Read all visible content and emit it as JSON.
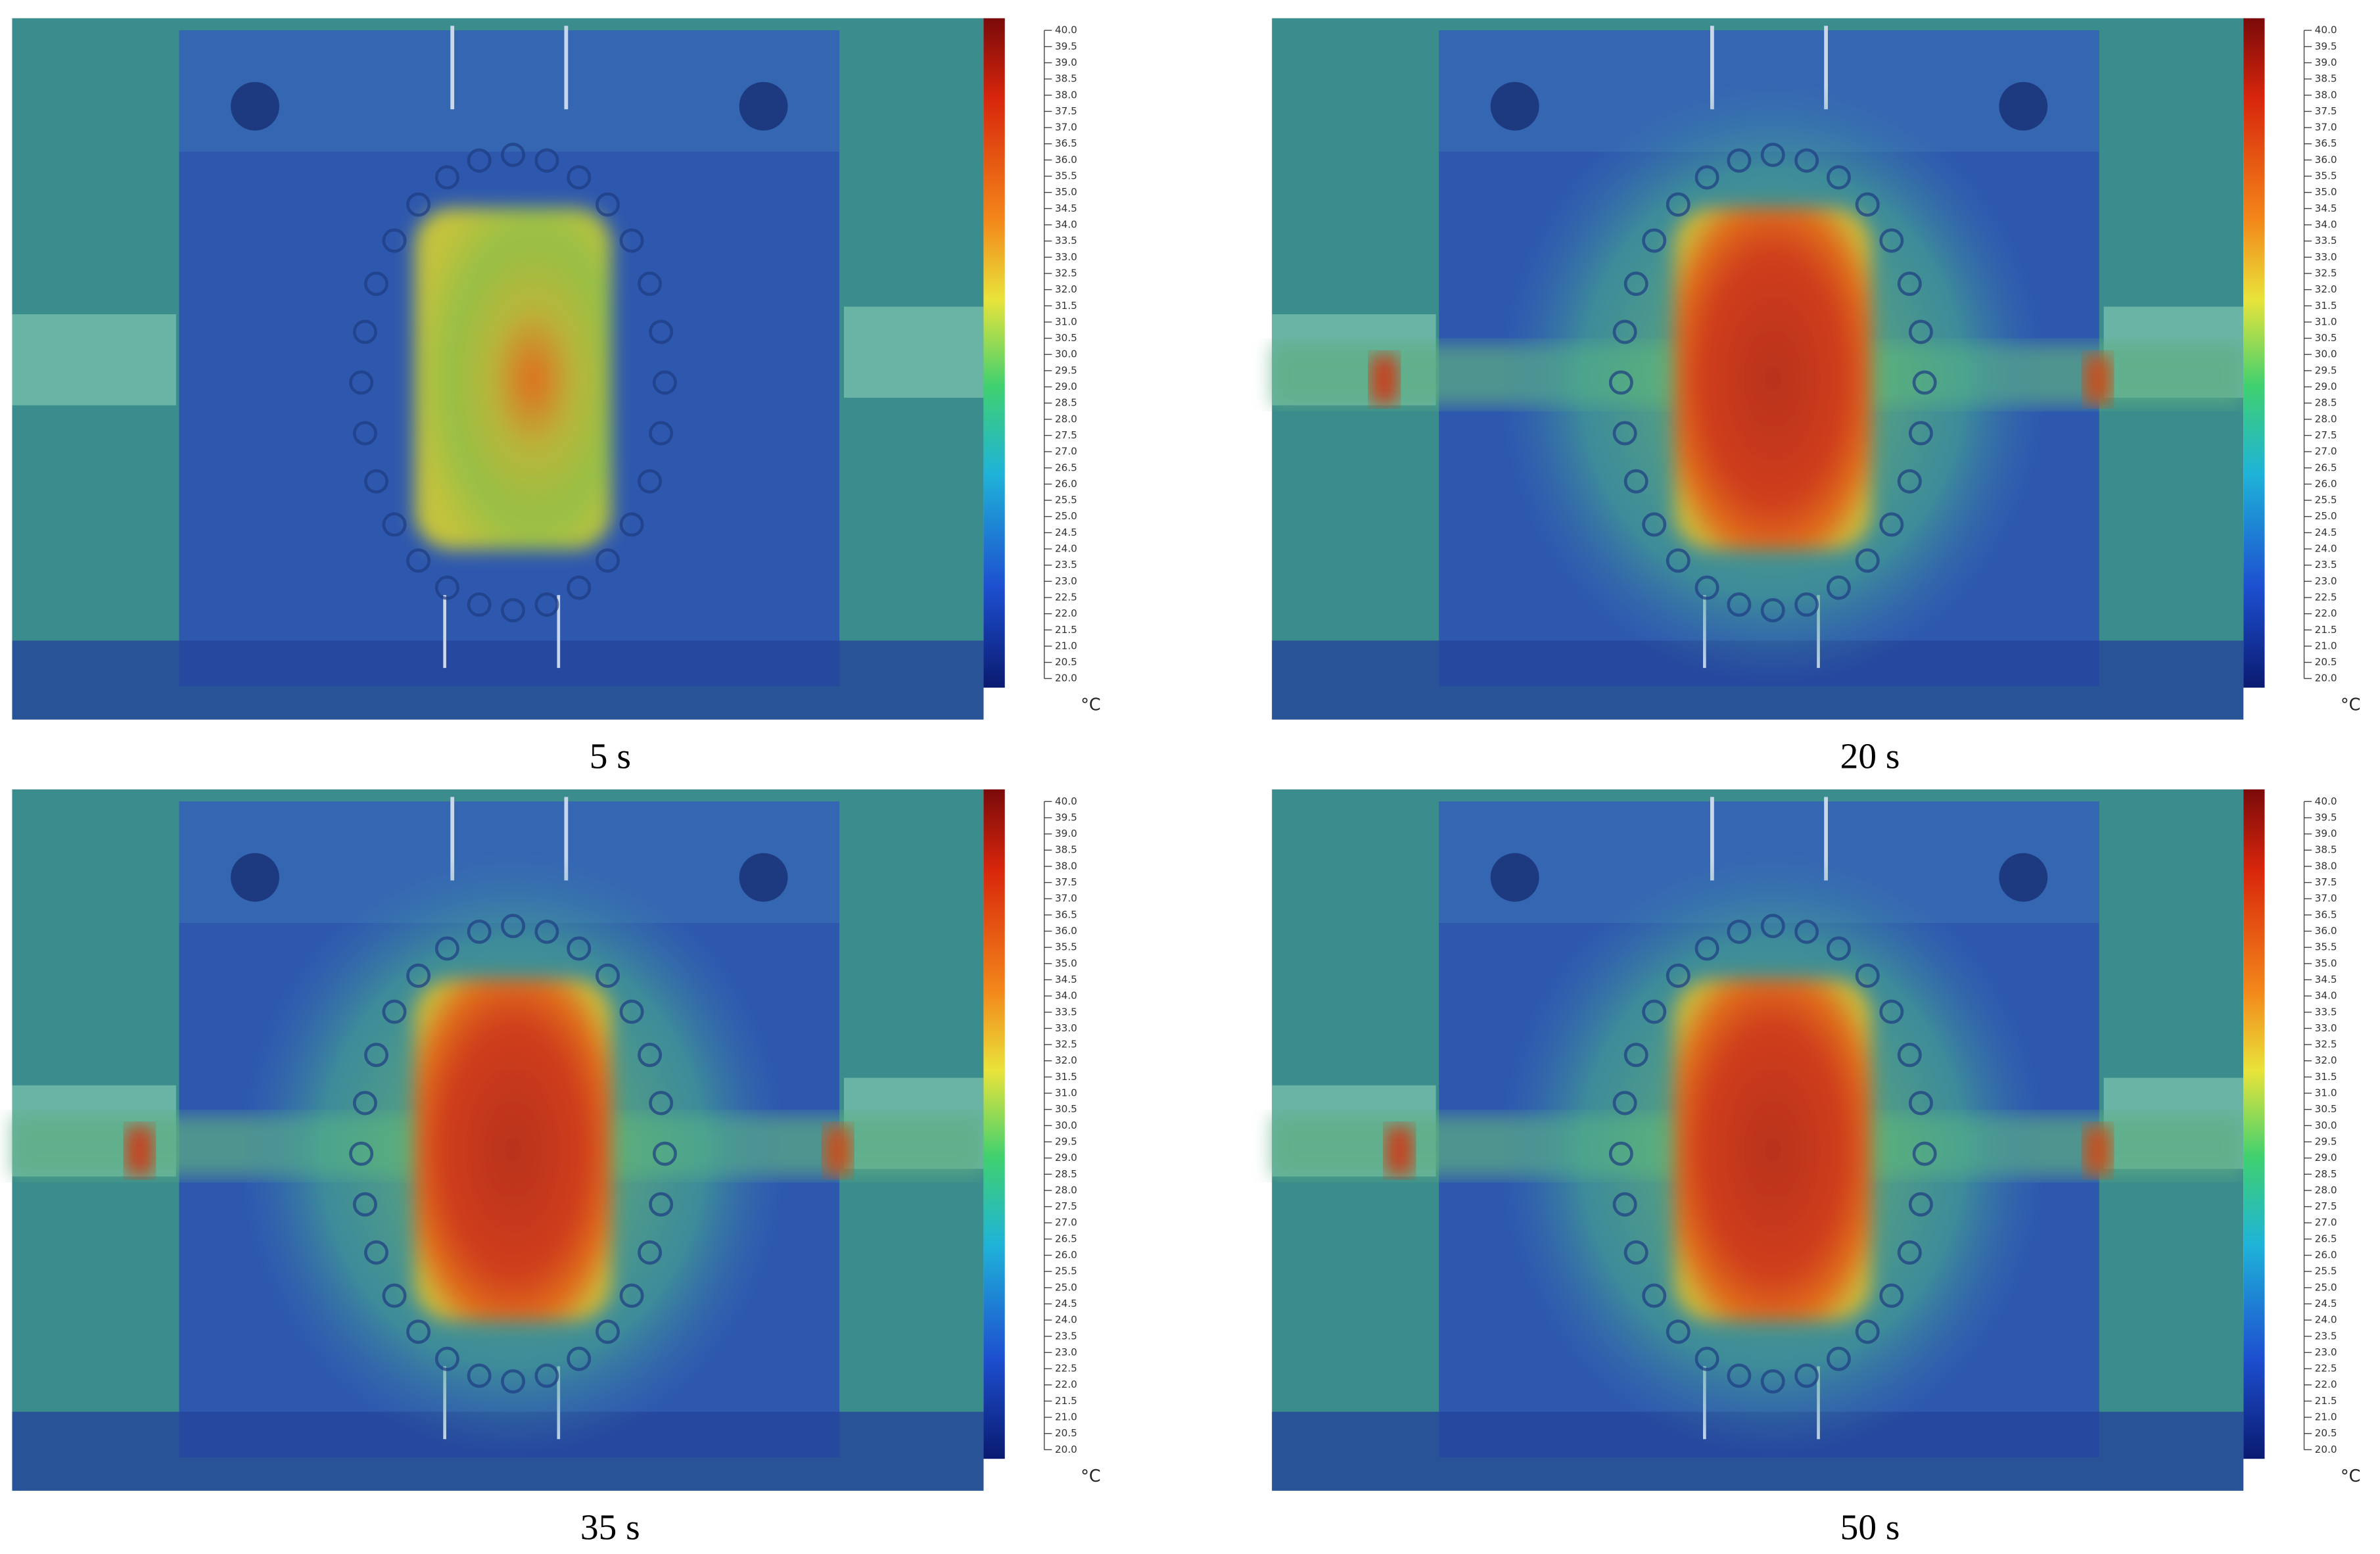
{
  "panels": [
    {
      "caption": "5 s"
    },
    {
      "caption": "20 s"
    },
    {
      "caption": "35 s"
    },
    {
      "caption": "50 s"
    }
  ],
  "colorbar": {
    "range": [
      20,
      40
    ],
    "unit": "°C",
    "ticks": [
      {
        "value": 20,
        "label": "20.0"
      },
      {
        "value": 20.5,
        "label": "20.5"
      },
      {
        "value": 21,
        "label": "21.0"
      },
      {
        "value": 21.5,
        "label": "21.5"
      },
      {
        "value": 22,
        "label": "22.0"
      },
      {
        "value": 22.5,
        "label": "22.5"
      },
      {
        "value": 23,
        "label": "23.0"
      },
      {
        "value": 23.5,
        "label": "23.5"
      },
      {
        "value": 24,
        "label": "24.0"
      },
      {
        "value": 24.5,
        "label": "24.5"
      },
      {
        "value": 25,
        "label": "25.0"
      },
      {
        "value": 25.5,
        "label": "25.5"
      },
      {
        "value": 26,
        "label": "26.0"
      },
      {
        "value": 26.5,
        "label": "26.5"
      },
      {
        "value": 27,
        "label": "27.0"
      },
      {
        "value": 27.5,
        "label": "27.5"
      },
      {
        "value": 28,
        "label": "28.0"
      },
      {
        "value": 28.5,
        "label": "28.5"
      },
      {
        "value": 29,
        "label": "29.0"
      },
      {
        "value": 29.5,
        "label": "29.5"
      },
      {
        "value": 30,
        "label": "30.0"
      },
      {
        "value": 30.5,
        "label": "30.5"
      },
      {
        "value": 31,
        "label": "31.0"
      },
      {
        "value": 31.5,
        "label": "31.5"
      },
      {
        "value": 32,
        "label": "32.0"
      },
      {
        "value": 32.5,
        "label": "32.5"
      },
      {
        "value": 33,
        "label": "33.0"
      },
      {
        "value": 33.5,
        "label": "33.5"
      },
      {
        "value": 34,
        "label": "34.0"
      },
      {
        "value": 34.5,
        "label": "34.5"
      },
      {
        "value": 35,
        "label": "35.0"
      },
      {
        "value": 35.5,
        "label": "35.5"
      },
      {
        "value": 36,
        "label": "36.0"
      },
      {
        "value": 36.5,
        "label": "36.5"
      },
      {
        "value": 37,
        "label": "37.0"
      },
      {
        "value": 37.5,
        "label": "37.5"
      },
      {
        "value": 38,
        "label": "38.0"
      },
      {
        "value": 38.5,
        "label": "38.5"
      },
      {
        "value": 39,
        "label": "39.0"
      },
      {
        "value": 39.5,
        "label": "39.5"
      },
      {
        "value": 40,
        "label": "40.0"
      }
    ]
  }
}
